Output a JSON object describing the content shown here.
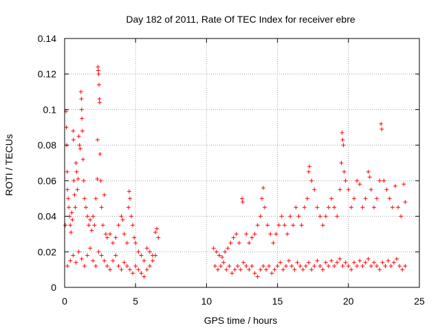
{
  "chart_data": {
    "type": "scatter",
    "title": "Day 182 of 2011, Rate Of TEC Index for receiver ebre",
    "xlabel": "GPS time / hours",
    "ylabel": "ROTI / TECUs",
    "xlim": [
      0,
      25
    ],
    "ylim": [
      0,
      0.14
    ],
    "xticks": [
      "0",
      "5",
      "10",
      "15",
      "20",
      "25"
    ],
    "yticks": [
      "0",
      "0.02",
      "0.04",
      "0.06",
      "0.08",
      "0.1",
      "0.12",
      "0.14"
    ],
    "grid": true,
    "marker": "plus",
    "color": "#ff0000",
    "series": [
      {
        "points": [
          [
            0.05,
            0.035
          ],
          [
            0.1,
            0.099
          ],
          [
            0.12,
            0.09
          ],
          [
            0.15,
            0.08
          ],
          [
            0.18,
            0.065
          ],
          [
            0.2,
            0.055
          ],
          [
            0.25,
            0.05
          ],
          [
            0.3,
            0.045
          ],
          [
            0.35,
            0.04
          ],
          [
            0.4,
            0.035
          ],
          [
            0.45,
            0.031
          ],
          [
            0.5,
            0.042
          ],
          [
            0.55,
            0.038
          ],
          [
            0.6,
            0.088
          ],
          [
            0.62,
            0.083
          ],
          [
            0.65,
            0.06
          ],
          [
            0.7,
            0.052
          ],
          [
            0.75,
            0.045
          ],
          [
            0.8,
            0.07
          ],
          [
            0.85,
            0.065
          ],
          [
            0.9,
            0.055
          ],
          [
            0.95,
            0.061
          ],
          [
            1.0,
            0.085
          ],
          [
            1.05,
            0.08
          ],
          [
            1.1,
            0.078
          ],
          [
            1.15,
            0.11
          ],
          [
            1.18,
            0.106
          ],
          [
            1.2,
            0.1
          ],
          [
            1.22,
            0.095
          ],
          [
            1.25,
            0.088
          ],
          [
            1.3,
            0.072
          ],
          [
            1.35,
            0.06
          ],
          [
            1.4,
            0.05
          ],
          [
            1.5,
            0.045
          ],
          [
            1.6,
            0.04
          ],
          [
            1.7,
            0.035
          ],
          [
            1.8,
            0.038
          ],
          [
            1.9,
            0.032
          ],
          [
            2.0,
            0.04
          ],
          [
            2.1,
            0.035
          ],
          [
            2.2,
            0.05
          ],
          [
            2.3,
            0.061
          ],
          [
            2.32,
            0.083
          ],
          [
            2.35,
            0.124
          ],
          [
            2.37,
            0.122
          ],
          [
            2.4,
            0.12
          ],
          [
            2.42,
            0.114
          ],
          [
            2.45,
            0.106
          ],
          [
            2.47,
            0.104
          ],
          [
            2.5,
            0.075
          ],
          [
            2.55,
            0.06
          ],
          [
            2.6,
            0.045
          ],
          [
            2.7,
            0.035
          ],
          [
            2.8,
            0.052
          ],
          [
            2.9,
            0.03
          ],
          [
            3.0,
            0.028
          ],
          [
            3.2,
            0.03
          ],
          [
            3.4,
            0.025
          ],
          [
            3.6,
            0.028
          ],
          [
            3.8,
            0.035
          ],
          [
            4.0,
            0.04
          ],
          [
            4.1,
            0.038
          ],
          [
            4.2,
            0.03
          ],
          [
            4.4,
            0.025
          ],
          [
            4.5,
            0.045
          ],
          [
            4.55,
            0.054
          ],
          [
            4.6,
            0.05
          ],
          [
            4.7,
            0.04
          ],
          [
            4.8,
            0.035
          ],
          [
            4.9,
            0.028
          ],
          [
            5.0,
            0.025
          ],
          [
            5.2,
            0.02
          ],
          [
            5.4,
            0.018
          ],
          [
            5.6,
            0.015
          ],
          [
            5.8,
            0.022
          ],
          [
            6.0,
            0.02
          ],
          [
            6.2,
            0.018
          ],
          [
            6.4,
            0.031
          ],
          [
            6.5,
            0.033
          ],
          [
            6.6,
            0.028
          ],
          [
            10.5,
            0.022
          ],
          [
            10.7,
            0.02
          ],
          [
            10.9,
            0.018
          ],
          [
            11.1,
            0.017
          ],
          [
            11.3,
            0.02
          ],
          [
            11.5,
            0.022
          ],
          [
            11.7,
            0.025
          ],
          [
            11.9,
            0.028
          ],
          [
            12.1,
            0.03
          ],
          [
            12.3,
            0.025
          ],
          [
            12.5,
            0.05
          ],
          [
            12.55,
            0.048
          ],
          [
            12.8,
            0.03
          ],
          [
            13.0,
            0.025
          ],
          [
            13.2,
            0.028
          ],
          [
            13.4,
            0.03
          ],
          [
            13.6,
            0.035
          ],
          [
            13.8,
            0.04
          ],
          [
            13.9,
            0.05
          ],
          [
            14.0,
            0.056
          ],
          [
            14.1,
            0.045
          ],
          [
            14.3,
            0.035
          ],
          [
            14.5,
            0.03
          ],
          [
            14.7,
            0.025
          ],
          [
            14.9,
            0.03
          ],
          [
            15.1,
            0.035
          ],
          [
            15.3,
            0.04
          ],
          [
            15.5,
            0.035
          ],
          [
            15.7,
            0.03
          ],
          [
            15.9,
            0.04
          ],
          [
            16.1,
            0.035
          ],
          [
            16.3,
            0.045
          ],
          [
            16.5,
            0.04
          ],
          [
            16.7,
            0.035
          ],
          [
            16.9,
            0.045
          ],
          [
            17.1,
            0.05
          ],
          [
            17.2,
            0.065
          ],
          [
            17.25,
            0.068
          ],
          [
            17.4,
            0.06
          ],
          [
            17.6,
            0.055
          ],
          [
            17.8,
            0.045
          ],
          [
            18.0,
            0.04
          ],
          [
            18.2,
            0.035
          ],
          [
            18.4,
            0.04
          ],
          [
            18.6,
            0.045
          ],
          [
            18.8,
            0.05
          ],
          [
            19.0,
            0.045
          ],
          [
            19.2,
            0.04
          ],
          [
            19.4,
            0.055
          ],
          [
            19.5,
            0.07
          ],
          [
            19.55,
            0.087
          ],
          [
            19.6,
            0.083
          ],
          [
            19.65,
            0.08
          ],
          [
            19.7,
            0.065
          ],
          [
            19.8,
            0.06
          ],
          [
            20.0,
            0.055
          ],
          [
            20.2,
            0.045
          ],
          [
            20.4,
            0.05
          ],
          [
            20.6,
            0.06
          ],
          [
            20.8,
            0.058
          ],
          [
            21.0,
            0.045
          ],
          [
            21.2,
            0.05
          ],
          [
            21.4,
            0.065
          ],
          [
            21.5,
            0.062
          ],
          [
            21.6,
            0.055
          ],
          [
            21.8,
            0.045
          ],
          [
            22.0,
            0.05
          ],
          [
            22.2,
            0.06
          ],
          [
            22.3,
            0.092
          ],
          [
            22.35,
            0.089
          ],
          [
            22.5,
            0.06
          ],
          [
            22.7,
            0.055
          ],
          [
            22.9,
            0.05
          ],
          [
            23.1,
            0.045
          ],
          [
            23.3,
            0.057
          ],
          [
            23.5,
            0.045
          ],
          [
            23.7,
            0.04
          ],
          [
            23.9,
            0.058
          ],
          [
            24.0,
            0.048
          ],
          [
            0.2,
            0.012
          ],
          [
            0.4,
            0.015
          ],
          [
            0.6,
            0.018
          ],
          [
            0.8,
            0.014
          ],
          [
            1.0,
            0.02
          ],
          [
            1.2,
            0.016
          ],
          [
            1.4,
            0.012
          ],
          [
            1.6,
            0.018
          ],
          [
            1.8,
            0.022
          ],
          [
            2.0,
            0.015
          ],
          [
            2.2,
            0.012
          ],
          [
            2.4,
            0.02
          ],
          [
            2.6,
            0.018
          ],
          [
            2.8,
            0.015
          ],
          [
            3.0,
            0.012
          ],
          [
            3.2,
            0.01
          ],
          [
            3.4,
            0.015
          ],
          [
            3.6,
            0.018
          ],
          [
            3.8,
            0.012
          ],
          [
            4.0,
            0.01
          ],
          [
            4.2,
            0.014
          ],
          [
            4.4,
            0.012
          ],
          [
            4.6,
            0.01
          ],
          [
            4.8,
            0.008
          ],
          [
            5.0,
            0.012
          ],
          [
            5.2,
            0.01
          ],
          [
            5.4,
            0.008
          ],
          [
            5.6,
            0.006
          ],
          [
            5.8,
            0.01
          ],
          [
            6.0,
            0.012
          ],
          [
            6.2,
            0.015
          ],
          [
            6.4,
            0.018
          ],
          [
            10.6,
            0.012
          ],
          [
            10.8,
            0.01
          ],
          [
            11.0,
            0.012
          ],
          [
            11.2,
            0.014
          ],
          [
            11.4,
            0.01
          ],
          [
            11.6,
            0.012
          ],
          [
            11.8,
            0.008
          ],
          [
            12.0,
            0.01
          ],
          [
            12.2,
            0.012
          ],
          [
            12.4,
            0.01
          ],
          [
            12.6,
            0.014
          ],
          [
            12.8,
            0.012
          ],
          [
            13.0,
            0.01
          ],
          [
            13.2,
            0.012
          ],
          [
            13.4,
            0.008
          ],
          [
            13.6,
            0.006
          ],
          [
            13.8,
            0.01
          ],
          [
            14.0,
            0.012
          ],
          [
            14.2,
            0.01
          ],
          [
            14.4,
            0.012
          ],
          [
            14.6,
            0.008
          ],
          [
            14.8,
            0.01
          ],
          [
            15.0,
            0.012
          ],
          [
            15.2,
            0.014
          ],
          [
            15.4,
            0.01
          ],
          [
            15.6,
            0.012
          ],
          [
            15.8,
            0.015
          ],
          [
            16.0,
            0.012
          ],
          [
            16.2,
            0.01
          ],
          [
            16.4,
            0.014
          ],
          [
            16.6,
            0.012
          ],
          [
            16.8,
            0.01
          ],
          [
            17.0,
            0.012
          ],
          [
            17.2,
            0.014
          ],
          [
            17.4,
            0.01
          ],
          [
            17.6,
            0.012
          ],
          [
            17.8,
            0.015
          ],
          [
            18.0,
            0.012
          ],
          [
            18.2,
            0.01
          ],
          [
            18.4,
            0.014
          ],
          [
            18.6,
            0.012
          ],
          [
            18.8,
            0.015
          ],
          [
            19.0,
            0.012
          ],
          [
            19.2,
            0.014
          ],
          [
            19.4,
            0.016
          ],
          [
            19.6,
            0.012
          ],
          [
            19.8,
            0.014
          ],
          [
            20.0,
            0.012
          ],
          [
            20.2,
            0.01
          ],
          [
            20.4,
            0.014
          ],
          [
            20.6,
            0.012
          ],
          [
            20.8,
            0.015
          ],
          [
            21.0,
            0.012
          ],
          [
            21.2,
            0.014
          ],
          [
            21.4,
            0.016
          ],
          [
            21.6,
            0.012
          ],
          [
            21.8,
            0.014
          ],
          [
            22.0,
            0.012
          ],
          [
            22.2,
            0.01
          ],
          [
            22.4,
            0.014
          ],
          [
            22.6,
            0.012
          ],
          [
            22.8,
            0.015
          ],
          [
            23.0,
            0.012
          ],
          [
            23.2,
            0.014
          ],
          [
            23.4,
            0.016
          ],
          [
            23.6,
            0.012
          ],
          [
            23.8,
            0.01
          ],
          [
            24.0,
            0.012
          ]
        ]
      }
    ]
  }
}
